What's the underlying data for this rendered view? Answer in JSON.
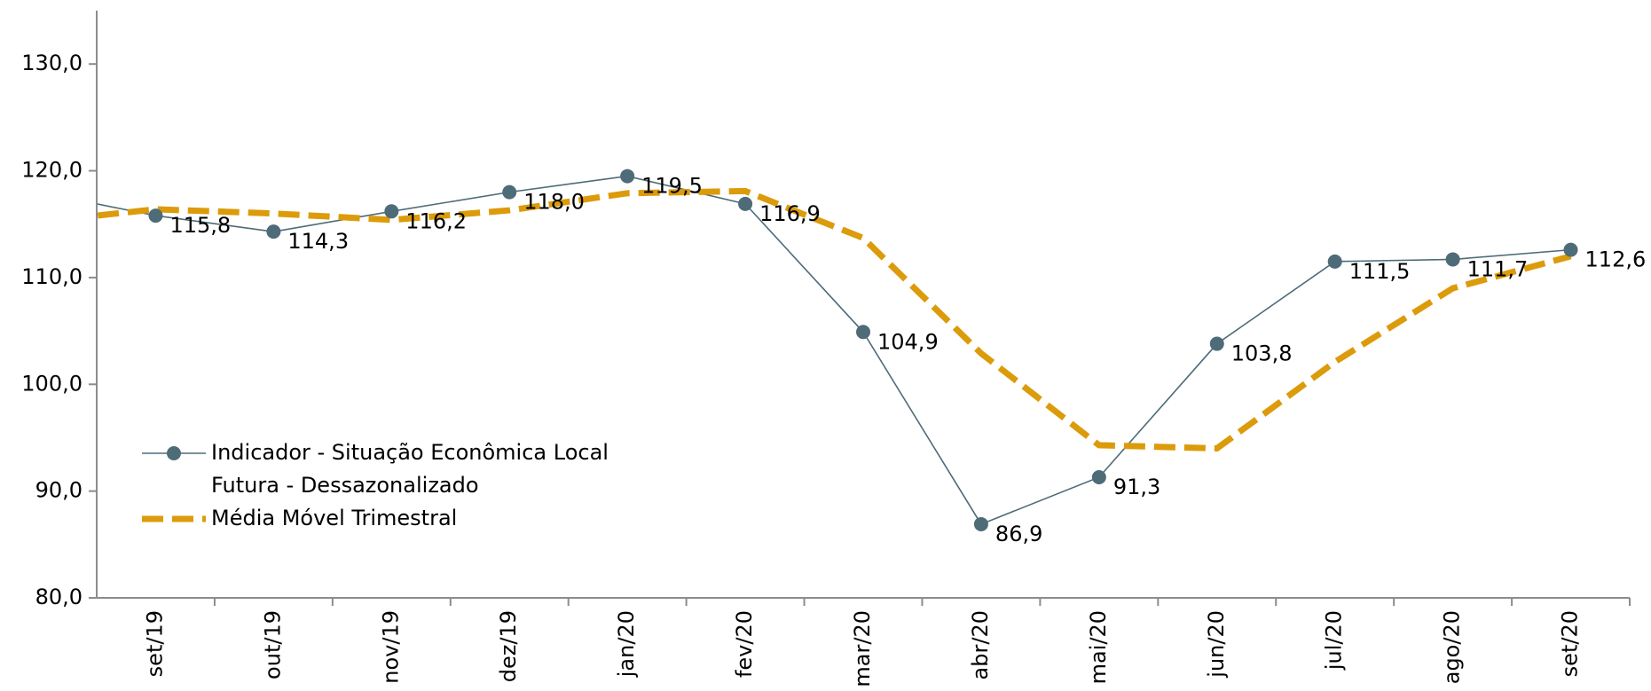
{
  "chart_data": {
    "type": "line",
    "categories": [
      null,
      "set/19",
      "out/19",
      "nov/19",
      "dez/19",
      "jan/20",
      "fev/20",
      "mar/20",
      "abr/20",
      "mai/20",
      "jun/20",
      "jul/20",
      "ago/20",
      "set/20"
    ],
    "series": [
      {
        "name": "Indicador - Situação Econômica Local Futura - Dessazonalizado",
        "color": "#4e6b78",
        "values": [
          118.0,
          115.8,
          114.3,
          116.2,
          118.0,
          119.5,
          116.9,
          104.9,
          86.9,
          91.3,
          103.8,
          111.5,
          111.7,
          112.6
        ],
        "value_labels": [
          null,
          "115,8",
          "114,3",
          "116,2",
          "118,0",
          "119,5",
          "116,9",
          "104,9",
          "86,9",
          "91,3",
          "103,8",
          "111,5",
          "111,7",
          "112,6"
        ]
      },
      {
        "name": "Média Móvel Trimestral",
        "color": "#dc9b0a",
        "values": [
          115.2,
          116.4,
          116.0,
          115.4,
          116.3,
          117.9,
          118.1,
          113.7,
          102.9,
          94.3,
          94.0,
          102.1,
          109.0,
          112.0
        ]
      }
    ],
    "ylim": [
      80,
      135
    ],
    "yticks": [
      {
        "value": 80,
        "label": "80,0"
      },
      {
        "value": 90,
        "label": "90,0"
      },
      {
        "value": 100,
        "label": "100,0"
      },
      {
        "value": 110,
        "label": "110,0"
      },
      {
        "value": 120,
        "label": "120,0"
      },
      {
        "value": 130,
        "label": "130,0"
      }
    ],
    "legend": "lower left"
  }
}
